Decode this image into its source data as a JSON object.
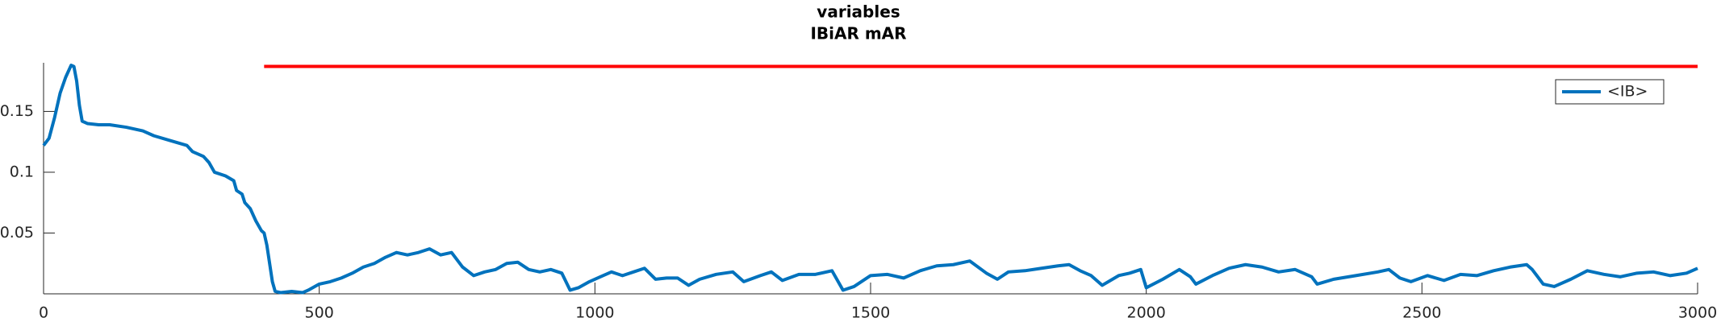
{
  "chart_data": {
    "type": "line",
    "title": "variables",
    "subtitle": "IBiAR mAR",
    "xlim": [
      0,
      3000
    ],
    "xticks": [
      0,
      500,
      1000,
      1500,
      2000,
      2500,
      3000
    ],
    "ylim": [
      0,
      0.19
    ],
    "yticks": [
      0.05,
      0.1,
      0.15
    ],
    "legend_position": "upper right",
    "series": [
      {
        "name": "<IB>",
        "color": "#0072bd",
        "x": [
          0,
          10,
          20,
          30,
          40,
          50,
          55,
          60,
          65,
          70,
          80,
          100,
          120,
          150,
          180,
          200,
          230,
          260,
          270,
          290,
          300,
          310,
          330,
          345,
          350,
          360,
          365,
          375,
          385,
          395,
          400,
          405,
          410,
          415,
          420,
          430,
          450,
          470,
          480,
          500,
          520,
          540,
          560,
          580,
          600,
          620,
          640,
          660,
          680,
          700,
          720,
          740,
          760,
          780,
          800,
          820,
          840,
          860,
          880,
          900,
          920,
          940,
          955,
          970,
          990,
          1010,
          1030,
          1050,
          1070,
          1090,
          1110,
          1130,
          1150,
          1170,
          1190,
          1220,
          1250,
          1270,
          1300,
          1320,
          1340,
          1370,
          1400,
          1430,
          1450,
          1470,
          1500,
          1530,
          1560,
          1590,
          1620,
          1650,
          1680,
          1710,
          1730,
          1750,
          1780,
          1810,
          1840,
          1860,
          1880,
          1900,
          1920,
          1950,
          1970,
          1990,
          2000,
          2030,
          2060,
          2080,
          2090,
          2120,
          2150,
          2180,
          2210,
          2240,
          2270,
          2300,
          2310,
          2340,
          2380,
          2420,
          2440,
          2460,
          2480,
          2510,
          2540,
          2570,
          2600,
          2630,
          2660,
          2690,
          2700,
          2720,
          2740,
          2770,
          2800,
          2830,
          2860,
          2890,
          2920,
          2950,
          2980,
          3000
        ],
        "values": [
          0.122,
          0.128,
          0.145,
          0.165,
          0.178,
          0.188,
          0.187,
          0.175,
          0.155,
          0.142,
          0.14,
          0.139,
          0.139,
          0.137,
          0.134,
          0.13,
          0.126,
          0.122,
          0.117,
          0.113,
          0.108,
          0.1,
          0.097,
          0.093,
          0.085,
          0.082,
          0.075,
          0.07,
          0.06,
          0.052,
          0.05,
          0.04,
          0.025,
          0.01,
          0.002,
          0.001,
          0.002,
          0.001,
          0.003,
          0.008,
          0.01,
          0.013,
          0.017,
          0.022,
          0.025,
          0.03,
          0.034,
          0.032,
          0.034,
          0.037,
          0.032,
          0.034,
          0.022,
          0.015,
          0.018,
          0.02,
          0.025,
          0.026,
          0.02,
          0.018,
          0.02,
          0.017,
          0.003,
          0.005,
          0.01,
          0.014,
          0.018,
          0.015,
          0.018,
          0.021,
          0.012,
          0.013,
          0.013,
          0.007,
          0.012,
          0.016,
          0.018,
          0.01,
          0.015,
          0.018,
          0.011,
          0.016,
          0.016,
          0.019,
          0.003,
          0.006,
          0.015,
          0.016,
          0.013,
          0.019,
          0.023,
          0.024,
          0.027,
          0.017,
          0.012,
          0.018,
          0.019,
          0.021,
          0.023,
          0.024,
          0.019,
          0.015,
          0.007,
          0.015,
          0.017,
          0.02,
          0.005,
          0.012,
          0.02,
          0.014,
          0.008,
          0.015,
          0.021,
          0.024,
          0.022,
          0.018,
          0.02,
          0.014,
          0.008,
          0.012,
          0.015,
          0.018,
          0.02,
          0.013,
          0.01,
          0.015,
          0.011,
          0.016,
          0.015,
          0.019,
          0.022,
          0.024,
          0.02,
          0.008,
          0.006,
          0.012,
          0.019,
          0.016,
          0.014,
          0.017,
          0.018,
          0.015,
          0.017,
          0.021
        ]
      },
      {
        "color": "#ff0000",
        "x": [
          400,
          3000
        ],
        "values": [
          0.187,
          0.187
        ]
      }
    ]
  }
}
